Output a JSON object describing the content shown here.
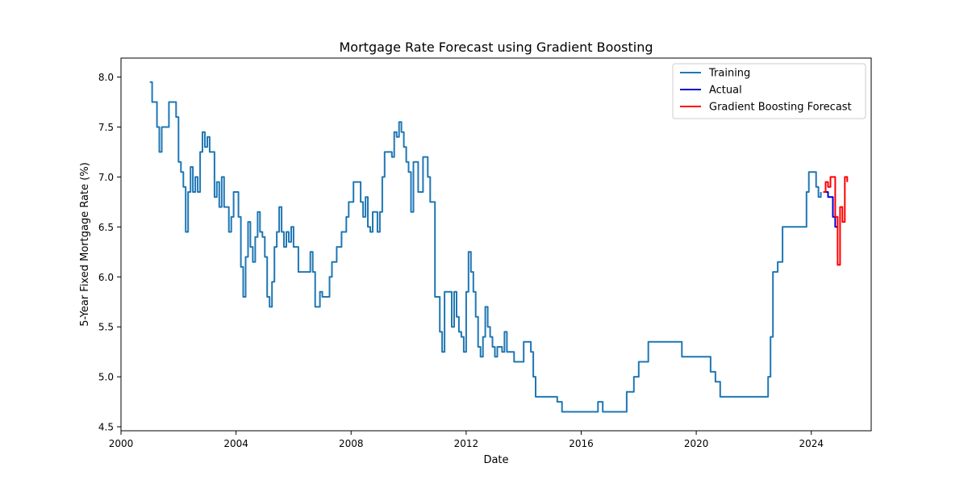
{
  "chart_data": {
    "type": "line",
    "title": "Mortgage Rate Forecast using Gradient Boosting",
    "xlabel": "Date",
    "ylabel": "5-Year Fixed Mortgage Rate (%)",
    "x_ticks": [
      "2000",
      "2004",
      "2008",
      "2012",
      "2016",
      "2020",
      "2024"
    ],
    "y_ticks": [
      "4.5",
      "5.0",
      "5.5",
      "6.0",
      "6.5",
      "7.0",
      "7.5",
      "8.0"
    ],
    "xlim": [
      "2000-01",
      "2026-02"
    ],
    "ylim": [
      4.46,
      8.19
    ],
    "grid": false,
    "legend_position": "upper right",
    "legend": [
      "Training",
      "Actual",
      "Gradient Boosting Forecast"
    ],
    "colors": {
      "training": "#1f77b4",
      "actual": "#0000cc",
      "forecast": "#ff0000",
      "axes": "#000000"
    },
    "series": [
      {
        "name": "Training",
        "points": [
          [
            "2001-01",
            7.95
          ],
          [
            "2001-02",
            7.75
          ],
          [
            "2001-03",
            7.75
          ],
          [
            "2001-04",
            7.5
          ],
          [
            "2001-05",
            7.25
          ],
          [
            "2001-06",
            7.5
          ],
          [
            "2001-08",
            7.5
          ],
          [
            "2001-09",
            7.75
          ],
          [
            "2001-11",
            7.75
          ],
          [
            "2001-12",
            7.6
          ],
          [
            "2002-01",
            7.15
          ],
          [
            "2002-02",
            7.05
          ],
          [
            "2002-03",
            6.9
          ],
          [
            "2002-04",
            6.45
          ],
          [
            "2002-05",
            6.85
          ],
          [
            "2002-06",
            7.1
          ],
          [
            "2002-07",
            6.85
          ],
          [
            "2002-08",
            7.0
          ],
          [
            "2002-09",
            6.85
          ],
          [
            "2002-10",
            7.25
          ],
          [
            "2002-11",
            7.45
          ],
          [
            "2002-12",
            7.3
          ],
          [
            "2003-01",
            7.4
          ],
          [
            "2003-02",
            7.25
          ],
          [
            "2003-03",
            7.25
          ],
          [
            "2003-04",
            6.8
          ],
          [
            "2003-05",
            6.95
          ],
          [
            "2003-06",
            6.7
          ],
          [
            "2003-07",
            7.0
          ],
          [
            "2003-08",
            6.7
          ],
          [
            "2003-09",
            6.7
          ],
          [
            "2003-10",
            6.45
          ],
          [
            "2003-11",
            6.6
          ],
          [
            "2003-12",
            6.85
          ],
          [
            "2004-01",
            6.85
          ],
          [
            "2004-02",
            6.6
          ],
          [
            "2004-03",
            6.1
          ],
          [
            "2004-04",
            5.8
          ],
          [
            "2004-05",
            6.2
          ],
          [
            "2004-06",
            6.55
          ],
          [
            "2004-07",
            6.3
          ],
          [
            "2004-08",
            6.15
          ],
          [
            "2004-09",
            6.4
          ],
          [
            "2004-10",
            6.65
          ],
          [
            "2004-11",
            6.45
          ],
          [
            "2004-12",
            6.4
          ],
          [
            "2005-01",
            6.2
          ],
          [
            "2005-02",
            5.8
          ],
          [
            "2005-03",
            5.7
          ],
          [
            "2005-04",
            5.95
          ],
          [
            "2005-05",
            6.3
          ],
          [
            "2005-06",
            6.45
          ],
          [
            "2005-07",
            6.7
          ],
          [
            "2005-08",
            6.45
          ],
          [
            "2005-09",
            6.3
          ],
          [
            "2005-10",
            6.45
          ],
          [
            "2005-11",
            6.35
          ],
          [
            "2005-12",
            6.5
          ],
          [
            "2006-01",
            6.3
          ],
          [
            "2006-02",
            6.3
          ],
          [
            "2006-03",
            6.05
          ],
          [
            "2006-05",
            6.05
          ],
          [
            "2006-07",
            6.05
          ],
          [
            "2006-08",
            6.25
          ],
          [
            "2006-09",
            6.05
          ],
          [
            "2006-10",
            5.7
          ],
          [
            "2006-11",
            5.7
          ],
          [
            "2006-12",
            5.85
          ],
          [
            "2007-01",
            5.8
          ],
          [
            "2007-03",
            5.8
          ],
          [
            "2007-04",
            6.0
          ],
          [
            "2007-05",
            6.15
          ],
          [
            "2007-07",
            6.3
          ],
          [
            "2007-09",
            6.45
          ],
          [
            "2007-11",
            6.6
          ],
          [
            "2007-12",
            6.75
          ],
          [
            "2008-02",
            6.95
          ],
          [
            "2008-04",
            6.95
          ],
          [
            "2008-05",
            6.75
          ],
          [
            "2008-06",
            6.6
          ],
          [
            "2008-07",
            6.8
          ],
          [
            "2008-08",
            6.5
          ],
          [
            "2008-09",
            6.45
          ],
          [
            "2008-10",
            6.65
          ],
          [
            "2008-12",
            6.45
          ],
          [
            "2009-01",
            6.65
          ],
          [
            "2009-02",
            7.0
          ],
          [
            "2009-03",
            7.25
          ],
          [
            "2009-05",
            7.25
          ],
          [
            "2009-06",
            7.2
          ],
          [
            "2009-07",
            7.45
          ],
          [
            "2009-08",
            7.4
          ],
          [
            "2009-09",
            7.55
          ],
          [
            "2009-10",
            7.45
          ],
          [
            "2009-11",
            7.3
          ],
          [
            "2009-12",
            7.15
          ],
          [
            "2010-01",
            7.05
          ],
          [
            "2010-02",
            6.65
          ],
          [
            "2010-03",
            7.15
          ],
          [
            "2010-05",
            6.85
          ],
          [
            "2010-07",
            7.2
          ],
          [
            "2010-09",
            7.0
          ],
          [
            "2010-10",
            6.75
          ],
          [
            "2010-12",
            5.8
          ],
          [
            "2011-01",
            5.8
          ],
          [
            "2011-02",
            5.45
          ],
          [
            "2011-03",
            5.25
          ],
          [
            "2011-04",
            5.85
          ],
          [
            "2011-06",
            5.85
          ],
          [
            "2011-07",
            5.5
          ],
          [
            "2011-08",
            5.85
          ],
          [
            "2011-09",
            5.6
          ],
          [
            "2011-10",
            5.45
          ],
          [
            "2011-11",
            5.4
          ],
          [
            "2011-12",
            5.25
          ],
          [
            "2012-01",
            5.85
          ],
          [
            "2012-02",
            6.25
          ],
          [
            "2012-03",
            6.05
          ],
          [
            "2012-04",
            5.85
          ],
          [
            "2012-05",
            5.6
          ],
          [
            "2012-06",
            5.3
          ],
          [
            "2012-07",
            5.2
          ],
          [
            "2012-08",
            5.4
          ],
          [
            "2012-09",
            5.7
          ],
          [
            "2012-10",
            5.5
          ],
          [
            "2012-11",
            5.4
          ],
          [
            "2012-12",
            5.3
          ],
          [
            "2013-01",
            5.2
          ],
          [
            "2013-02",
            5.3
          ],
          [
            "2013-04",
            5.25
          ],
          [
            "2013-05",
            5.45
          ],
          [
            "2013-06",
            5.25
          ],
          [
            "2013-08",
            5.25
          ],
          [
            "2013-09",
            5.15
          ],
          [
            "2013-10",
            5.15
          ],
          [
            "2014-01",
            5.35
          ],
          [
            "2014-03",
            5.35
          ],
          [
            "2014-04",
            5.25
          ],
          [
            "2014-05",
            5.0
          ],
          [
            "2014-06",
            4.8
          ],
          [
            "2015-01",
            4.8
          ],
          [
            "2015-03",
            4.75
          ],
          [
            "2015-05",
            4.65
          ],
          [
            "2016-07",
            4.65
          ],
          [
            "2016-08",
            4.75
          ],
          [
            "2016-10",
            4.65
          ],
          [
            "2017-07",
            4.65
          ],
          [
            "2017-08",
            4.85
          ],
          [
            "2017-10",
            4.85
          ],
          [
            "2017-11",
            5.0
          ],
          [
            "2018-01",
            5.15
          ],
          [
            "2018-03",
            5.15
          ],
          [
            "2018-05",
            5.35
          ],
          [
            "2019-06",
            5.35
          ],
          [
            "2019-07",
            5.2
          ],
          [
            "2020-06",
            5.2
          ],
          [
            "2020-07",
            5.05
          ],
          [
            "2020-09",
            4.95
          ],
          [
            "2020-11",
            4.8
          ],
          [
            "2022-06",
            4.8
          ],
          [
            "2022-07",
            5.0
          ],
          [
            "2022-08",
            5.4
          ],
          [
            "2022-09",
            6.05
          ],
          [
            "2022-11",
            6.15
          ],
          [
            "2023-01",
            6.5
          ],
          [
            "2023-10",
            6.5
          ],
          [
            "2023-11",
            6.85
          ],
          [
            "2023-12",
            7.05
          ],
          [
            "2024-02",
            7.05
          ],
          [
            "2024-03",
            6.9
          ],
          [
            "2024-04",
            6.8
          ],
          [
            "2024-05",
            6.85
          ]
        ]
      },
      {
        "name": "Actual",
        "points": [
          [
            "2024-06",
            6.85
          ],
          [
            "2024-07",
            6.85
          ],
          [
            "2024-08",
            6.8
          ],
          [
            "2024-09",
            6.8
          ],
          [
            "2024-10",
            6.6
          ],
          [
            "2024-11",
            6.5
          ],
          [
            "2024-12",
            6.5
          ]
        ]
      },
      {
        "name": "Gradient Boosting Forecast",
        "points": [
          [
            "2024-06",
            6.85
          ],
          [
            "2024-07",
            6.95
          ],
          [
            "2024-08",
            6.9
          ],
          [
            "2024-09",
            7.0
          ],
          [
            "2024-10",
            7.0
          ],
          [
            "2024-11",
            6.6
          ],
          [
            "2024-12",
            6.12
          ],
          [
            "2025-01",
            6.7
          ],
          [
            "2025-02",
            6.55
          ],
          [
            "2025-03",
            7.0
          ],
          [
            "2025-04",
            6.95
          ]
        ]
      }
    ]
  }
}
